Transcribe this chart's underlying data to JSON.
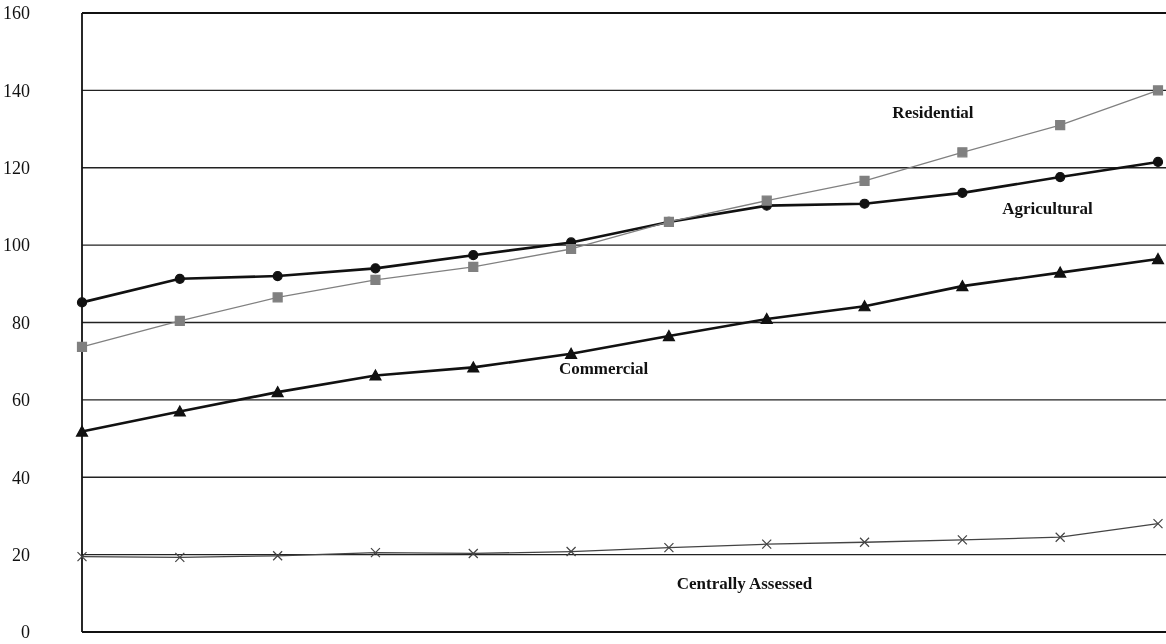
{
  "chart_data": {
    "type": "line",
    "categories": [
      null,
      null,
      null,
      null,
      null,
      null,
      null,
      null,
      null,
      null,
      null,
      null
    ],
    "series": [
      {
        "name": "Residential",
        "color": "#808080",
        "marker": "square",
        "values": [
          73.7,
          80.4,
          86.5,
          91,
          94.4,
          99,
          106,
          111.5,
          116.6,
          124,
          131,
          140
        ]
      },
      {
        "name": "Agricultural",
        "color": "#111111",
        "marker": "circle",
        "values": [
          85.2,
          91.3,
          92,
          94,
          97.4,
          100.7,
          106,
          110.2,
          110.7,
          113.5,
          117.6,
          121.5
        ]
      },
      {
        "name": "Commercial",
        "color": "#111111",
        "marker": "triangle",
        "values": [
          51.8,
          57,
          62,
          66.3,
          68.4,
          71.9,
          76.5,
          80.9,
          84.2,
          89.4,
          92.9,
          96.4
        ]
      },
      {
        "name": "Centrally Assessed",
        "color": "#444444",
        "marker": "cross",
        "values": [
          19.5,
          19.3,
          19.7,
          20.5,
          20.3,
          20.8,
          21.8,
          22.7,
          23.2,
          23.8,
          24.5,
          28
        ]
      }
    ],
    "ylim": [
      0,
      160
    ],
    "yticks": [
      0,
      20,
      40,
      60,
      80,
      100,
      120,
      140,
      160
    ],
    "grid": "y",
    "tick_labels": "y",
    "legend": false
  }
}
